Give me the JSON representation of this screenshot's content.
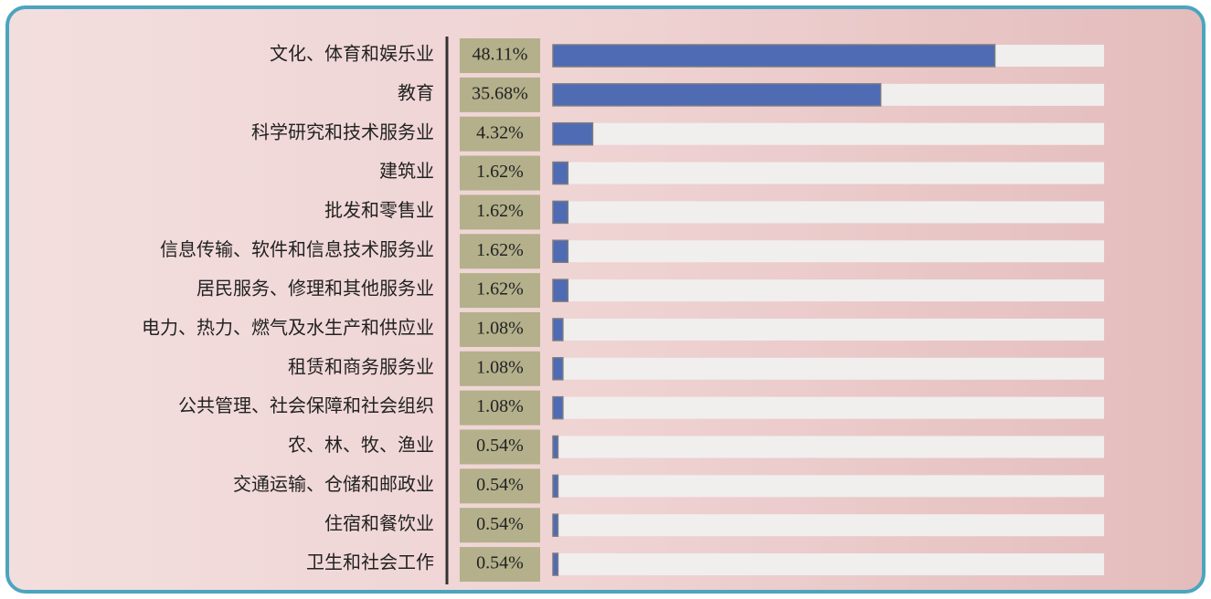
{
  "chart_data": {
    "type": "bar",
    "orientation": "horizontal",
    "categories": [
      "文化、体育和娱乐业",
      "教育",
      "科学研究和技术服务业",
      "建筑业",
      "批发和零售业",
      "信息传输、软件和信息技术服务业",
      "居民服务、修理和其他服务业",
      "电力、热力、燃气及水生产和供应业",
      "租赁和商务服务业",
      "公共管理、社会保障和社会组织",
      "农、林、牧、渔业",
      "交通运输、仓储和邮政业",
      "住宿和餐饮业",
      "卫生和社会工作"
    ],
    "values": [
      48.11,
      35.68,
      4.32,
      1.62,
      1.62,
      1.62,
      1.62,
      1.08,
      1.08,
      1.08,
      0.54,
      0.54,
      0.54,
      0.54
    ],
    "value_labels": [
      "48.11%",
      "35.68%",
      "4.32%",
      "1.62%",
      "1.62%",
      "1.62%",
      "1.62%",
      "1.08%",
      "1.08%",
      "1.08%",
      "0.54%",
      "0.54%",
      "0.54%",
      "0.54%"
    ],
    "color": "#4e6bb4",
    "xlim": [
      0,
      60
    ]
  }
}
